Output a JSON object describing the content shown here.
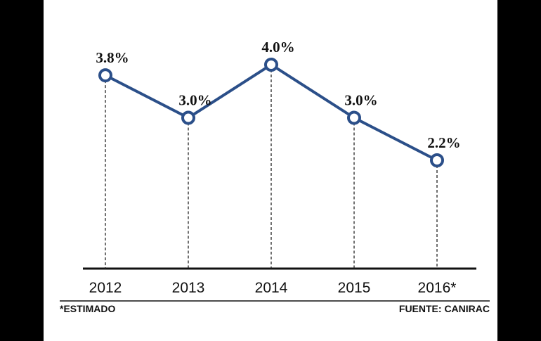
{
  "chart_data": {
    "type": "line",
    "categories": [
      "2012",
      "2013",
      "2014",
      "2015",
      "2016*"
    ],
    "series": [
      {
        "color": "#2b4f89",
        "values": [
          3.8,
          3.0,
          4.0,
          3.0,
          2.2
        ],
        "value_labels": [
          "3.8%",
          "3.0%",
          "4.0%",
          "3.0%",
          "2.2%"
        ]
      }
    ],
    "footnote": "*ESTIMADO",
    "source": "FUENTE: CANIRAC"
  }
}
